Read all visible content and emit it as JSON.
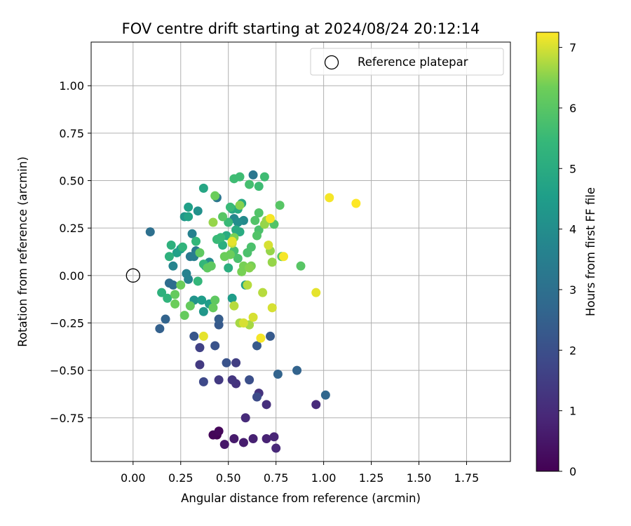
{
  "chart_data": {
    "type": "scatter",
    "title": "FOV centre drift starting at 2024/08/24 20:12:14",
    "xlabel": "Angular distance from reference (arcmin)",
    "ylabel": "Rotation from reference (arcmin)",
    "xlim": [
      -0.22,
      1.98
    ],
    "ylim": [
      -0.98,
      1.23
    ],
    "xticks": [
      0.0,
      0.25,
      0.5,
      0.75,
      1.0,
      1.25,
      1.5,
      1.75
    ],
    "xtick_labels": [
      "0.00",
      "0.25",
      "0.50",
      "0.75",
      "1.00",
      "1.25",
      "1.50",
      "1.75"
    ],
    "yticks": [
      -0.75,
      -0.5,
      -0.25,
      0.0,
      0.25,
      0.5,
      0.75,
      1.0
    ],
    "ytick_labels": [
      "−0.75",
      "−0.50",
      "−0.25",
      "0.00",
      "0.25",
      "0.50",
      "0.75",
      "1.00"
    ],
    "grid": true,
    "legend": {
      "placement": "top-right",
      "entries": [
        {
          "label": "Reference platepar",
          "marker": "open-circle"
        }
      ]
    },
    "reference_point": {
      "x": 0.0,
      "y": 0.0
    },
    "colorbar": {
      "label": "Hours from first FF file",
      "colormap": "viridis",
      "range": [
        0,
        7.25
      ],
      "ticks": [
        0,
        1,
        2,
        3,
        4,
        5,
        6,
        7
      ],
      "tick_labels": [
        "0",
        "1",
        "2",
        "3",
        "4",
        "5",
        "6",
        "7"
      ]
    },
    "series": [
      {
        "points": [
          [
            0.44,
            -0.84,
            0.0
          ],
          [
            0.42,
            -0.84,
            0.1
          ],
          [
            0.45,
            -0.82,
            0.15
          ],
          [
            0.48,
            -0.89,
            0.5
          ],
          [
            0.53,
            -0.86,
            0.6
          ],
          [
            0.58,
            -0.88,
            0.65
          ],
          [
            0.63,
            -0.86,
            0.75
          ],
          [
            0.7,
            -0.86,
            0.8
          ],
          [
            0.74,
            -0.85,
            0.85
          ],
          [
            0.75,
            -0.91,
            0.9
          ],
          [
            0.59,
            -0.75,
            1.0
          ],
          [
            0.96,
            -0.68,
            1.0
          ],
          [
            0.7,
            -0.68,
            1.1
          ],
          [
            0.66,
            -0.62,
            1.2
          ],
          [
            0.54,
            -0.57,
            1.2
          ],
          [
            0.52,
            -0.55,
            1.3
          ],
          [
            0.45,
            -0.55,
            1.4
          ],
          [
            0.35,
            -0.47,
            1.4
          ],
          [
            0.54,
            -0.46,
            1.5
          ],
          [
            0.35,
            -0.38,
            1.6
          ],
          [
            0.37,
            -0.56,
            1.8
          ],
          [
            0.65,
            -0.64,
            1.9
          ],
          [
            0.61,
            -0.55,
            2.0
          ],
          [
            0.49,
            -0.46,
            2.1
          ],
          [
            0.43,
            -0.37,
            2.1
          ],
          [
            0.32,
            -0.32,
            2.2
          ],
          [
            0.72,
            -0.32,
            2.3
          ],
          [
            0.65,
            -0.37,
            2.3
          ],
          [
            0.45,
            -0.26,
            2.3
          ],
          [
            0.45,
            -0.23,
            2.4
          ],
          [
            0.76,
            -0.52,
            2.6
          ],
          [
            0.86,
            -0.5,
            2.6
          ],
          [
            1.01,
            -0.63,
            2.7
          ],
          [
            0.14,
            -0.28,
            2.5
          ],
          [
            0.17,
            -0.23,
            2.6
          ],
          [
            0.19,
            -0.04,
            2.9
          ],
          [
            0.21,
            -0.05,
            2.9
          ],
          [
            0.09,
            0.23,
            3.0
          ],
          [
            0.44,
            0.41,
            3.2
          ],
          [
            0.63,
            0.53,
            3.2
          ],
          [
            0.3,
            0.1,
            3.3
          ],
          [
            0.33,
            0.13,
            3.3
          ],
          [
            0.32,
            0.1,
            3.5
          ],
          [
            0.29,
            -0.02,
            3.6
          ],
          [
            0.28,
            0.01,
            3.6
          ],
          [
            0.31,
            0.22,
            3.6
          ],
          [
            0.21,
            0.05,
            3.7
          ],
          [
            0.38,
            0.05,
            3.8
          ],
          [
            0.53,
            0.3,
            3.8
          ],
          [
            0.58,
            0.29,
            3.9
          ],
          [
            0.4,
            0.07,
            3.9
          ],
          [
            0.55,
            0.28,
            4.0
          ],
          [
            0.34,
            0.34,
            4.1
          ],
          [
            0.27,
            0.31,
            4.3
          ],
          [
            0.32,
            -0.13,
            4.2
          ],
          [
            0.37,
            -0.19,
            4.3
          ],
          [
            0.4,
            -0.15,
            4.5
          ],
          [
            0.36,
            -0.13,
            4.5
          ],
          [
            0.59,
            -0.05,
            4.6
          ],
          [
            0.52,
            -0.12,
            4.5
          ],
          [
            0.25,
            0.14,
            4.5
          ],
          [
            0.23,
            0.12,
            4.6
          ],
          [
            0.29,
            0.36,
            4.6
          ],
          [
            0.29,
            0.31,
            4.7
          ],
          [
            0.37,
            0.46,
            4.8
          ],
          [
            0.55,
            0.35,
            4.9
          ],
          [
            0.57,
            0.38,
            4.9
          ],
          [
            0.56,
            0.23,
            5.0
          ],
          [
            0.52,
            0.35,
            4.9
          ],
          [
            0.54,
            0.24,
            5.0
          ],
          [
            0.49,
            0.21,
            5.0
          ],
          [
            0.47,
            0.16,
            5.1
          ],
          [
            0.5,
            0.04,
            5.1
          ],
          [
            0.2,
            0.16,
            5.2
          ],
          [
            0.19,
            0.1,
            5.2
          ],
          [
            0.15,
            -0.09,
            5.2
          ],
          [
            0.18,
            -0.12,
            5.3
          ],
          [
            0.26,
            0.15,
            5.3
          ],
          [
            0.33,
            0.18,
            5.4
          ],
          [
            0.37,
            0.06,
            5.4
          ],
          [
            0.34,
            -0.03,
            5.4
          ],
          [
            0.44,
            0.19,
            5.5
          ],
          [
            0.46,
            0.2,
            5.5
          ],
          [
            0.5,
            0.28,
            5.5
          ],
          [
            0.51,
            0.36,
            5.5
          ],
          [
            0.53,
            0.51,
            5.6
          ],
          [
            0.56,
            0.52,
            5.6
          ],
          [
            0.66,
            0.47,
            5.6
          ],
          [
            0.69,
            0.52,
            5.6
          ],
          [
            0.61,
            0.48,
            5.7
          ],
          [
            0.53,
            0.13,
            5.7
          ],
          [
            0.55,
            0.09,
            5.8
          ],
          [
            0.6,
            0.12,
            5.8
          ],
          [
            0.62,
            0.15,
            5.8
          ],
          [
            0.66,
            0.24,
            5.8
          ],
          [
            0.65,
            0.21,
            5.9
          ],
          [
            0.66,
            0.33,
            5.9
          ],
          [
            0.64,
            0.29,
            5.9
          ],
          [
            0.74,
            0.27,
            5.9
          ],
          [
            0.77,
            0.37,
            6.0
          ],
          [
            0.78,
            0.1,
            6.0
          ],
          [
            0.88,
            0.05,
            6.0
          ],
          [
            0.47,
            0.31,
            6.0
          ],
          [
            0.41,
            0.05,
            6.1
          ],
          [
            0.39,
            0.04,
            6.1
          ],
          [
            0.35,
            0.12,
            6.1
          ],
          [
            0.43,
            -0.13,
            6.1
          ],
          [
            0.42,
            -0.17,
            6.2
          ],
          [
            0.3,
            -0.16,
            6.2
          ],
          [
            0.27,
            -0.21,
            6.2
          ],
          [
            0.22,
            -0.1,
            6.2
          ],
          [
            0.25,
            -0.05,
            6.3
          ],
          [
            0.22,
            -0.15,
            6.3
          ],
          [
            0.43,
            0.42,
            6.3
          ],
          [
            0.51,
            0.11,
            6.3
          ],
          [
            0.48,
            0.1,
            6.3
          ],
          [
            0.53,
            0.2,
            6.4
          ],
          [
            0.57,
            0.02,
            6.4
          ],
          [
            0.58,
            0.05,
            6.4
          ],
          [
            0.62,
            0.05,
            6.4
          ],
          [
            0.61,
            0.04,
            6.5
          ],
          [
            0.56,
            0.37,
            6.5
          ],
          [
            0.7,
            0.29,
            6.6
          ],
          [
            0.69,
            0.27,
            6.6
          ],
          [
            0.72,
            0.13,
            6.6
          ],
          [
            0.73,
            0.07,
            6.6
          ],
          [
            0.42,
            0.28,
            6.6
          ],
          [
            0.56,
            -0.25,
            6.7
          ],
          [
            0.61,
            -0.26,
            6.7
          ],
          [
            0.53,
            -0.16,
            6.8
          ],
          [
            0.68,
            -0.09,
            6.8
          ],
          [
            0.6,
            -0.05,
            6.8
          ],
          [
            0.52,
            0.17,
            6.9
          ],
          [
            0.71,
            0.16,
            7.0
          ],
          [
            0.73,
            -0.17,
            7.0
          ],
          [
            0.63,
            -0.22,
            7.0
          ],
          [
            0.58,
            -0.25,
            7.0
          ],
          [
            0.37,
            -0.32,
            7.1
          ],
          [
            0.67,
            -0.33,
            7.2
          ],
          [
            0.72,
            0.3,
            7.2
          ],
          [
            0.79,
            0.1,
            7.2
          ],
          [
            0.96,
            -0.09,
            7.1
          ],
          [
            1.03,
            0.41,
            7.2
          ],
          [
            1.17,
            0.38,
            7.3
          ],
          [
            0.52,
            0.18,
            7.1
          ]
        ]
      }
    ]
  }
}
